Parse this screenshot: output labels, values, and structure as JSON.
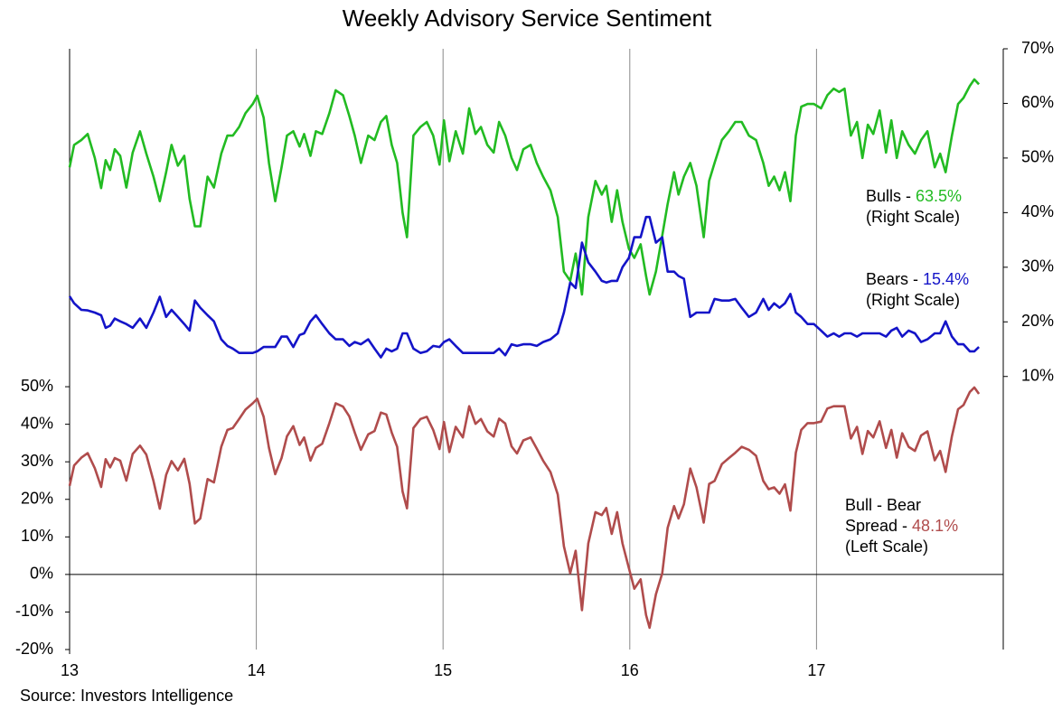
{
  "chart_data": {
    "type": "line",
    "title": "Weekly Advisory Service Sentiment",
    "source": "Source: Investors Intelligence",
    "x": [
      13.0,
      13.024,
      13.063,
      13.097,
      13.135,
      13.169,
      13.193,
      13.217,
      13.242,
      13.271,
      13.304,
      13.338,
      13.377,
      13.411,
      13.449,
      13.483,
      13.517,
      13.546,
      13.58,
      13.614,
      13.643,
      13.671,
      13.7,
      13.739,
      13.773,
      13.812,
      13.845,
      13.874,
      13.908,
      13.942,
      13.981,
      14.005,
      14.039,
      14.068,
      14.101,
      14.135,
      14.164,
      14.198,
      14.232,
      14.256,
      14.29,
      14.319,
      14.353,
      14.391,
      14.425,
      14.464,
      14.498,
      14.527,
      14.56,
      14.599,
      14.633,
      14.667,
      14.696,
      14.725,
      14.754,
      14.783,
      14.807,
      14.841,
      14.879,
      14.913,
      14.947,
      14.981,
      15.005,
      15.034,
      15.068,
      15.106,
      15.14,
      15.174,
      15.203,
      15.237,
      15.271,
      15.3,
      15.333,
      15.367,
      15.396,
      15.43,
      15.469,
      15.502,
      15.536,
      15.575,
      15.614,
      15.647,
      15.681,
      15.71,
      15.744,
      15.778,
      15.816,
      15.85,
      15.874,
      15.903,
      15.932,
      15.961,
      15.995,
      16.024,
      16.058,
      16.087,
      16.106,
      16.14,
      16.174,
      16.203,
      16.237,
      16.261,
      16.29,
      16.324,
      16.357,
      16.396,
      16.425,
      16.454,
      16.493,
      16.531,
      16.565,
      16.599,
      16.638,
      16.676,
      16.715,
      16.744,
      16.773,
      16.802,
      16.831,
      16.86,
      16.889,
      16.918,
      16.952,
      16.986,
      17.024,
      17.058,
      17.092,
      17.121,
      17.15,
      17.184,
      17.217,
      17.246,
      17.275,
      17.304,
      17.338,
      17.372,
      17.401,
      17.43,
      17.459,
      17.493,
      17.527,
      17.56,
      17.594,
      17.633,
      17.662,
      17.691,
      17.725,
      17.758,
      17.787,
      17.821,
      17.845,
      17.87
    ],
    "series": [
      {
        "name": "Bulls",
        "color": "#22bb22",
        "axis": "y2",
        "label": [
          "Bulls - "
        ],
        "last_value_label": "63.5%",
        "note": "(Right Scale)",
        "values": [
          48.3,
          52.4,
          53.3,
          54.4,
          50,
          44.5,
          49.6,
          47.8,
          51.6,
          50.4,
          44.6,
          51,
          54.9,
          50.8,
          46.6,
          42.1,
          47.4,
          52.4,
          48.6,
          50.4,
          42.5,
          37.5,
          37.5,
          46.6,
          44.6,
          50.8,
          54.1,
          54.1,
          55.7,
          58.2,
          59.9,
          61.4,
          57.4,
          49.1,
          42.1,
          48.3,
          54.1,
          54.9,
          52.1,
          54.4,
          50.4,
          54.9,
          54.4,
          58.2,
          62.4,
          61.5,
          57.7,
          54.1,
          49.1,
          54.1,
          53.3,
          56.6,
          57.7,
          52.4,
          49.1,
          40,
          35.5,
          54.1,
          55.7,
          56.6,
          54.1,
          48.8,
          56.9,
          49.4,
          54.9,
          50.8,
          59.1,
          54.4,
          55.7,
          52.4,
          51,
          56.6,
          54.1,
          50,
          47.8,
          51.6,
          52.4,
          49.1,
          46.6,
          44.1,
          39.2,
          29.2,
          27.5,
          32.5,
          25,
          39.2,
          45.8,
          43.3,
          44.9,
          38.3,
          44.1,
          38.3,
          33.4,
          31.7,
          34.2,
          28.4,
          25,
          29.2,
          35.8,
          41.6,
          47.4,
          43.3,
          46.6,
          49.1,
          44.9,
          35.5,
          45.8,
          49.1,
          53.3,
          54.9,
          56.6,
          56.6,
          54.1,
          53.3,
          49.1,
          44.9,
          46.6,
          44.1,
          47.4,
          42.1,
          54.1,
          59.4,
          59.9,
          59.9,
          59.1,
          61.5,
          62.7,
          62.1,
          62.7,
          54.1,
          56.6,
          50,
          56.1,
          54.4,
          58.7,
          51,
          56.9,
          50,
          54.9,
          52.4,
          50.8,
          53.3,
          54.9,
          48.3,
          50.8,
          47.4,
          54.1,
          59.9,
          61,
          63.2,
          64.4,
          63.5
        ]
      },
      {
        "name": "Bears",
        "color": "#1414c8",
        "axis": "y2",
        "label": [
          "Bears - "
        ],
        "last_value_label": "15.4%",
        "note": "(Right Scale)",
        "values": [
          24.7,
          23.4,
          22.2,
          22.1,
          21.7,
          21.2,
          18.9,
          19.3,
          20.6,
          20.1,
          19.6,
          18.9,
          20.6,
          18.9,
          21.7,
          24.6,
          20.9,
          22.2,
          20.9,
          19.6,
          18.4,
          23.9,
          22.6,
          21.2,
          20.1,
          16.8,
          15.6,
          15.1,
          14.3,
          14.3,
          14.3,
          14.6,
          15.4,
          15.4,
          15.4,
          17.3,
          17.3,
          15.4,
          17.6,
          17.9,
          20.1,
          21.2,
          19.6,
          17.9,
          16.8,
          16.8,
          15.6,
          16.3,
          15.9,
          16.8,
          15.1,
          13.5,
          15.1,
          14.6,
          15.1,
          17.9,
          17.9,
          15.1,
          14.3,
          14.6,
          15.6,
          15.4,
          16.3,
          16.8,
          15.6,
          14.3,
          14.3,
          14.3,
          14.3,
          14.3,
          14.3,
          15.1,
          13.9,
          15.9,
          15.6,
          15.9,
          15.9,
          15.6,
          16.3,
          16.8,
          17.9,
          21.7,
          27.2,
          26.2,
          34.5,
          30.9,
          29.2,
          27.5,
          27.2,
          27.5,
          27.5,
          30,
          31.7,
          35.5,
          35.5,
          39.2,
          39.2,
          34.5,
          35.5,
          29.2,
          29.2,
          28.4,
          27.9,
          20.9,
          21.7,
          21.7,
          21.7,
          24.2,
          23.9,
          23.9,
          24.2,
          22.6,
          20.9,
          21.7,
          24.2,
          22.2,
          23.4,
          22.6,
          23.4,
          25.1,
          21.7,
          20.9,
          19.6,
          19.6,
          18.4,
          17.3,
          17.9,
          17.3,
          17.9,
          17.9,
          17.3,
          17.9,
          17.9,
          17.9,
          17.9,
          17.3,
          18.4,
          18.9,
          17.3,
          18.4,
          17.9,
          16.3,
          16.8,
          17.9,
          17.9,
          20.1,
          17.3,
          15.9,
          15.9,
          14.6,
          14.6,
          15.4
        ]
      },
      {
        "name": "Bull - Bear Spread",
        "color": "#b04c4c",
        "axis": "y",
        "label": [
          "Bull - Bear",
          "Spread - "
        ],
        "last_value_label": "48.1%",
        "note": "(Left Scale)",
        "values": [
          23.6,
          29,
          31.1,
          32.3,
          28.3,
          23.3,
          30.7,
          28.5,
          31,
          30.3,
          25,
          32.1,
          34.3,
          31.9,
          24.9,
          17.5,
          26.5,
          30.2,
          27.7,
          30.8,
          24.1,
          13.6,
          14.9,
          25.4,
          24.5,
          34,
          38.5,
          39,
          41.4,
          43.9,
          45.6,
          46.8,
          42,
          33.7,
          26.7,
          31,
          36.8,
          39.5,
          34.5,
          36.5,
          30.3,
          33.7,
          34.8,
          40.3,
          45.6,
          44.7,
          42.1,
          37.8,
          33.2,
          37.3,
          38.2,
          43.1,
          42.6,
          37.8,
          34,
          22.1,
          17.6,
          39,
          41.4,
          42,
          38.5,
          33.4,
          40.6,
          32.6,
          39.3,
          36.5,
          44.8,
          40.1,
          41.4,
          38.1,
          36.7,
          41.5,
          40.2,
          34.1,
          32.2,
          35.7,
          36.5,
          33.5,
          30.3,
          27.3,
          21.3,
          7.5,
          0.3,
          6.3,
          -9.5,
          8.3,
          16.6,
          15.8,
          17.7,
          10.8,
          16.6,
          8.3,
          1.7,
          -3.8,
          -1.3,
          -10.8,
          -14.2,
          -5.3,
          0.3,
          12.4,
          18.2,
          14.9,
          18.7,
          28.2,
          23.2,
          13.8,
          24.1,
          24.9,
          29.4,
          31,
          32.4,
          34,
          33.2,
          31.6,
          24.9,
          22.7,
          23.2,
          21.5,
          24,
          17,
          32.4,
          38.5,
          40.3,
          40.3,
          40.7,
          44.2,
          44.8,
          44.8,
          44.8,
          36.2,
          39.3,
          32.1,
          38.2,
          36.5,
          40.8,
          33.7,
          38.5,
          31.1,
          37.6,
          34,
          32.9,
          37,
          38.1,
          30.4,
          32.9,
          27.3,
          36.8,
          44,
          45.1,
          48.6,
          49.8,
          48.1
        ]
      }
    ],
    "xlim": [
      13,
      18
    ],
    "xticks": [
      13,
      14,
      15,
      16,
      17
    ],
    "ylim": [
      -20,
      140
    ],
    "yticks": [
      {
        "value": -20,
        "label": "-20%"
      },
      {
        "value": -10,
        "label": "-10%"
      },
      {
        "value": 0,
        "label": "0%"
      },
      {
        "value": 10,
        "label": "10%"
      },
      {
        "value": 20,
        "label": "20%"
      },
      {
        "value": 30,
        "label": "30%"
      },
      {
        "value": 40,
        "label": "40%"
      },
      {
        "value": 50,
        "label": "50%"
      }
    ],
    "y2lim": [
      -40,
      70
    ],
    "y2ticks": [
      {
        "value": 10,
        "label": "10%"
      },
      {
        "value": 20,
        "label": "20%"
      },
      {
        "value": 30,
        "label": "30%"
      },
      {
        "value": 40,
        "label": "40%"
      },
      {
        "value": 50,
        "label": "50%"
      },
      {
        "value": 60,
        "label": "60%"
      },
      {
        "value": 70,
        "label": "70%"
      }
    ],
    "grid": "x"
  }
}
